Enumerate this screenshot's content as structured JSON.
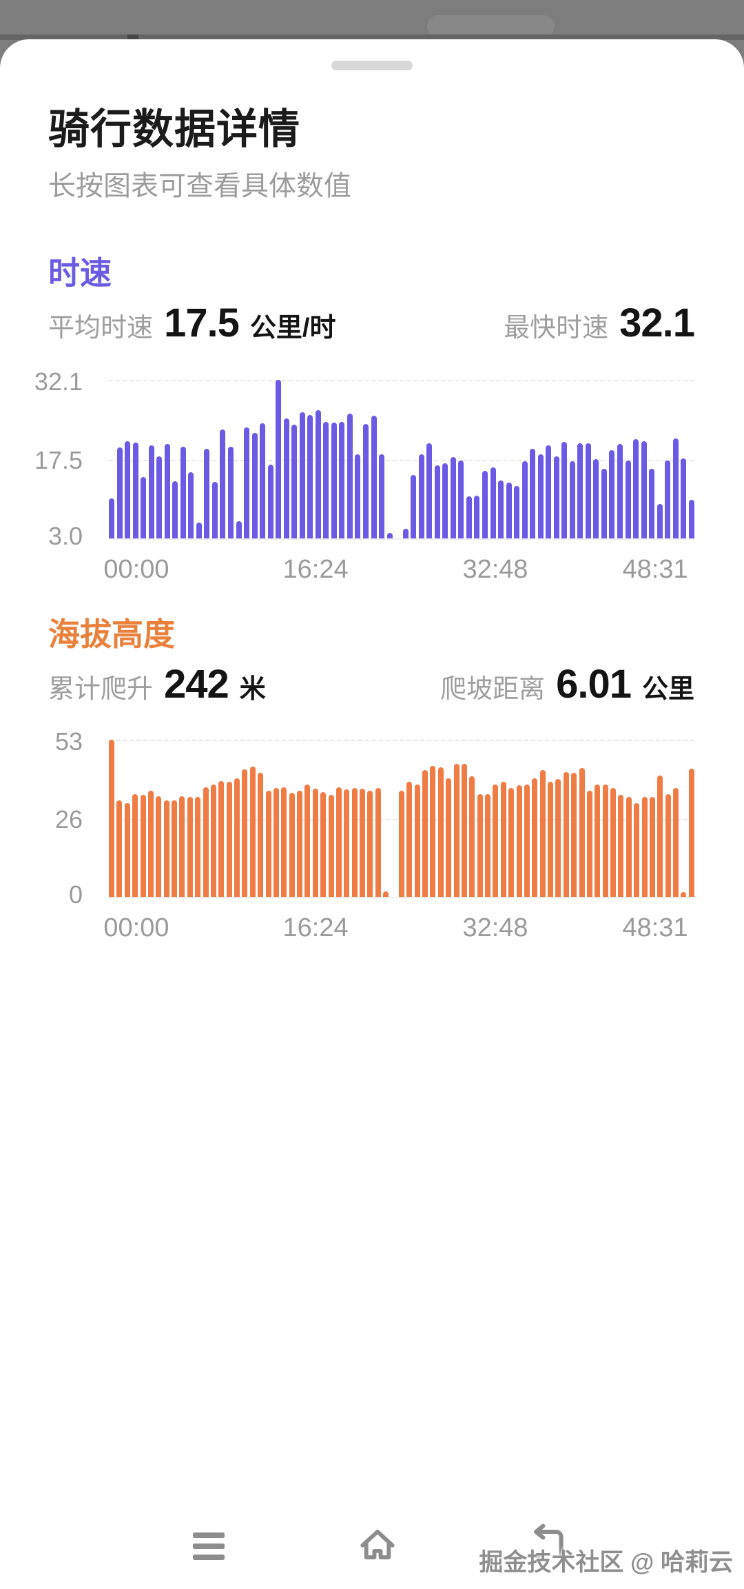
{
  "sheet": {
    "title": "骑行数据详情",
    "subtitle": "长按图表可查看具体数值"
  },
  "speed_section": {
    "header": "时速",
    "accent_color": "#6b5be3",
    "stats": {
      "avg_label": "平均时速",
      "avg_value": "17.5",
      "avg_unit": "公里/时",
      "max_label": "最快时速",
      "max_value": "32.1",
      "max_unit": ""
    }
  },
  "altitude_section": {
    "header": "海拔高度",
    "accent_color": "#e9813c",
    "stats": {
      "climb_label": "累计爬升",
      "climb_value": "242",
      "climb_unit": "米",
      "dist_label": "爬坡距离",
      "dist_value": "6.01",
      "dist_unit": "公里"
    }
  },
  "chart_data": [
    {
      "type": "bar",
      "title": "时速",
      "ylabel": "公里/时",
      "ylim": [
        3.0,
        32.1
      ],
      "yticks": [
        "32.1",
        "17.5",
        "3.0"
      ],
      "xticks": [
        "00:00",
        "16:24",
        "32:48",
        "48:31"
      ],
      "bar_color": "#6a5ae4",
      "grid": "dashed horizontal lines at 17.5 and 32.1",
      "legend": "none",
      "values": [
        10.3,
        19.7,
        20.8,
        20.6,
        14.3,
        20.1,
        18.0,
        20.3,
        13.5,
        19.8,
        15.1,
        5.9,
        19.4,
        13.4,
        23.0,
        19.8,
        6.2,
        23.4,
        22.4,
        24.1,
        16.6,
        32.1,
        25.0,
        23.9,
        26.1,
        25.7,
        26.5,
        24.4,
        24.3,
        24.4,
        25.9,
        18.4,
        24.0,
        25.5,
        18.4,
        4.0,
        0,
        4.8,
        14.7,
        18.4,
        20.5,
        16.4,
        16.8,
        17.9,
        17.3,
        10.7,
        10.9,
        15.4,
        16.0,
        13.6,
        13.3,
        12.6,
        17.2,
        19.4,
        18.5,
        20.1,
        18.0,
        20.7,
        17.2,
        20.4,
        20.5,
        17.5,
        15.8,
        19.2,
        20.3,
        17.3,
        21.2,
        20.8,
        15.8,
        9.3,
        17.3,
        21.3,
        17.7,
        10.1
      ]
    },
    {
      "type": "bar",
      "title": "海拔高度",
      "ylabel": "米",
      "ylim": [
        0,
        53
      ],
      "yticks": [
        "53",
        "26",
        "0"
      ],
      "xticks": [
        "00:00",
        "16:24",
        "32:48",
        "48:31"
      ],
      "bar_color": "#ee7c44",
      "grid": "dashed horizontal lines at 26 and 53",
      "legend": "none",
      "values": [
        53.0,
        32.6,
        31.6,
        34.7,
        34.5,
        35.7,
        33.9,
        32.6,
        32.6,
        33.9,
        33.8,
        33.6,
        37.0,
        38.0,
        39.0,
        38.8,
        40.1,
        43.0,
        43.9,
        41.8,
        35.7,
        36.8,
        37.0,
        35.1,
        35.9,
        38.0,
        36.5,
        35.3,
        34.5,
        37.0,
        36.2,
        36.7,
        36.5,
        35.7,
        36.7,
        1.8,
        0,
        35.9,
        38.9,
        37.8,
        42.8,
        44.2,
        43.6,
        39.9,
        44.9,
        44.8,
        40.7,
        34.7,
        34.7,
        37.8,
        38.9,
        36.7,
        37.6,
        37.8,
        39.9,
        42.8,
        38.8,
        39.8,
        42.0,
        41.8,
        43.4,
        35.9,
        37.8,
        37.8,
        36.7,
        34.5,
        33.8,
        31.6,
        33.6,
        33.8,
        40.8,
        34.7,
        36.7,
        1.6,
        43.2
      ]
    }
  ],
  "nav": {
    "menu_icon": "recent-apps-menu",
    "home_icon": "home",
    "back_icon": "back-return-arrow"
  },
  "watermark": "掘金技术社区 @ 哈莉云"
}
